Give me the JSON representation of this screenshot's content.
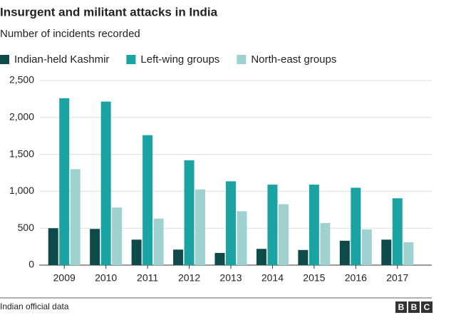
{
  "chart_data": {
    "type": "bar",
    "title": "Insurgent and militant attacks in India",
    "subtitle": "Number of incidents recorded",
    "categories": [
      "2009",
      "2010",
      "2011",
      "2012",
      "2013",
      "2014",
      "2015",
      "2016",
      "2017"
    ],
    "series": [
      {
        "name": "Indian-held Kashmir",
        "color": "#0f4a4a",
        "values": [
          500,
          490,
          345,
          210,
          165,
          220,
          205,
          330,
          345
        ]
      },
      {
        "name": "Left-wing groups",
        "color": "#1aa3a3",
        "values": [
          2260,
          2215,
          1760,
          1420,
          1135,
          1090,
          1090,
          1048,
          905
        ]
      },
      {
        "name": "North-east groups",
        "color": "#a0d1d1",
        "values": [
          1300,
          780,
          630,
          1025,
          730,
          825,
          570,
          483,
          310
        ]
      }
    ],
    "ylim": [
      0,
      2500
    ],
    "yticks": [
      0,
      500,
      {
        "value": 1000,
        "label": "1,000"
      },
      {
        "value": 1500,
        "label": "1,500"
      },
      {
        "value": 2000,
        "label": "2,000"
      },
      {
        "value": 2500,
        "label": "2,500"
      }
    ],
    "grid": true,
    "legend": "top",
    "source": "Indian official data",
    "logo": [
      "B",
      "B",
      "C"
    ]
  }
}
